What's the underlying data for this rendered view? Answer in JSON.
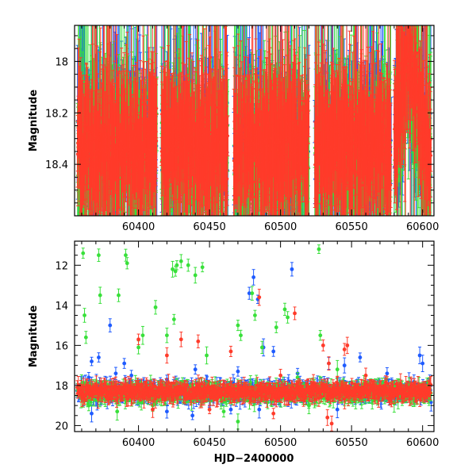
{
  "chart_data": [
    {
      "type": "scatter",
      "title": "",
      "xlabel": "",
      "ylabel": "Magnitude",
      "xlim": [
        60355,
        60608
      ],
      "ylim": [
        18.6,
        17.86
      ],
      "y_inverted": true,
      "x_ticks": [
        60400,
        60450,
        60500,
        60550,
        60600
      ],
      "y_ticks": [
        18,
        18.2,
        18.4
      ],
      "grid": false,
      "legend": "none",
      "series": [
        {
          "color": "#1f5bff",
          "baseline": 18.33,
          "scatter": 0.09
        },
        {
          "color": "#38e03a",
          "baseline": 18.34,
          "scatter": 0.09
        },
        {
          "color": "#ff3b2a",
          "baseline": 18.32,
          "scatter": 0.07
        }
      ],
      "dense_segments": [
        [
          60357,
          60413
        ],
        [
          60416,
          60463
        ],
        [
          60467,
          60520
        ],
        [
          60524,
          60578
        ],
        [
          60580,
          60606
        ]
      ],
      "brightening_near": 60590
    },
    {
      "type": "scatter",
      "title": "",
      "xlabel": "HJD−2400000",
      "ylabel": "Magnitude",
      "xlim": [
        60355,
        60608
      ],
      "ylim": [
        20.3,
        10.8
      ],
      "y_inverted": true,
      "x_ticks": [
        60400,
        60450,
        60500,
        60550,
        60600
      ],
      "y_ticks": [
        12,
        14,
        16,
        18,
        20
      ],
      "grid": false,
      "legend": "none",
      "series": [
        {
          "color": "#1f5bff",
          "baseline": 18.3,
          "outliers": [
            [
              60365,
              17.6
            ],
            [
              60367,
              16.8
            ],
            [
              60372,
              16.6
            ],
            [
              60380,
              15.0
            ],
            [
              60384,
              17.4
            ],
            [
              60390,
              16.9
            ],
            [
              60395,
              17.5
            ],
            [
              60420,
              17.7
            ],
            [
              60440,
              17.2
            ],
            [
              60448,
              17.9
            ],
            [
              60470,
              17.3
            ],
            [
              60478,
              13.4
            ],
            [
              60481,
              12.6
            ],
            [
              60484,
              13.7
            ],
            [
              60488,
              16.1
            ],
            [
              60495,
              16.3
            ],
            [
              60508,
              12.2
            ],
            [
              60512,
              17.4
            ],
            [
              60534,
              16.9
            ],
            [
              60545,
              17.0
            ],
            [
              60556,
              16.6
            ],
            [
              60575,
              17.4
            ],
            [
              60598,
              16.5
            ],
            [
              60600,
              16.9
            ],
            [
              60367,
              19.4
            ],
            [
              60420,
              19.3
            ],
            [
              60438,
              19.5
            ],
            [
              60465,
              19.2
            ],
            [
              60485,
              19.2
            ],
            [
              60540,
              19.2
            ]
          ]
        },
        {
          "color": "#38e03a",
          "baseline": 18.35,
          "outliers": [
            [
              60361,
              11.4
            ],
            [
              60362,
              14.5
            ],
            [
              60363,
              15.6
            ],
            [
              60372,
              11.5
            ],
            [
              60373,
              13.5
            ],
            [
              60386,
              13.5
            ],
            [
              60391,
              11.5
            ],
            [
              60392,
              11.9
            ],
            [
              60400,
              16.1
            ],
            [
              60403,
              15.5
            ],
            [
              60412,
              14.1
            ],
            [
              60420,
              15.5
            ],
            [
              60424,
              12.2
            ],
            [
              60425,
              14.7
            ],
            [
              60426,
              12.3
            ],
            [
              60427,
              12.0
            ],
            [
              60430,
              11.8
            ],
            [
              60435,
              12.0
            ],
            [
              60440,
              12.5
            ],
            [
              60445,
              12.1
            ],
            [
              60448,
              16.5
            ],
            [
              60470,
              15.0
            ],
            [
              60472,
              15.5
            ],
            [
              60480,
              13.4
            ],
            [
              60482,
              14.5
            ],
            [
              60483,
              17.8
            ],
            [
              60487,
              16.1
            ],
            [
              60497,
              15.1
            ],
            [
              60503,
              14.2
            ],
            [
              60505,
              14.6
            ],
            [
              60512,
              17.6
            ],
            [
              60527,
              11.2
            ],
            [
              60528,
              15.5
            ],
            [
              60540,
              17.2
            ],
            [
              60560,
              17.9
            ],
            [
              60365,
              19.0
            ],
            [
              60385,
              19.3
            ],
            [
              60410,
              19.0
            ],
            [
              60460,
              19.3
            ],
            [
              60470,
              19.8
            ],
            [
              60520,
              19.0
            ],
            [
              60580,
              18.9
            ]
          ]
        },
        {
          "color": "#ff3b2a",
          "baseline": 18.3,
          "outliers": [
            [
              60400,
              15.7
            ],
            [
              60420,
              16.5
            ],
            [
              60430,
              15.7
            ],
            [
              60442,
              15.8
            ],
            [
              60465,
              16.3
            ],
            [
              60485,
              13.6
            ],
            [
              60500,
              17.5
            ],
            [
              60510,
              14.4
            ],
            [
              60522,
              18.0
            ],
            [
              60530,
              16.0
            ],
            [
              60534,
              16.9
            ],
            [
              60545,
              16.2
            ],
            [
              60547,
              16.0
            ],
            [
              60560,
              17.5
            ],
            [
              60410,
              19.2
            ],
            [
              60450,
              19.2
            ],
            [
              60495,
              19.4
            ],
            [
              60533,
              19.6
            ],
            [
              60536,
              19.9
            ]
          ]
        }
      ]
    }
  ]
}
